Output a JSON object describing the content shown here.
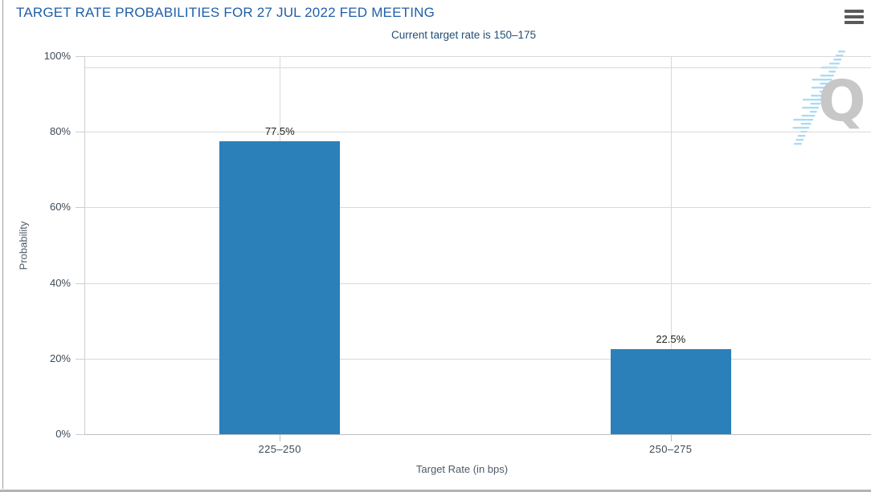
{
  "chart_data": {
    "type": "bar",
    "title": "TARGET RATE PROBABILITIES FOR 27 JUL 2022 FED MEETING",
    "subtitle": "Current target rate is 150–175",
    "categories": [
      "225–250",
      "250–275"
    ],
    "values": [
      77.5,
      22.5
    ],
    "data_labels": [
      "77.5%",
      "22.5%"
    ],
    "xlabel": "Target Rate (in bps)",
    "ylabel": "Probability",
    "ylim": [
      0,
      100
    ],
    "yticks": [
      0,
      20,
      40,
      60,
      80,
      100
    ],
    "ytick_labels": [
      "0%",
      "20%",
      "40%",
      "60%",
      "80%",
      "100%"
    ],
    "grid": true,
    "legend": false
  },
  "header": {
    "menu_icon": "hamburger"
  },
  "watermark": {
    "letter": "Q"
  },
  "colors": {
    "title": "#1f5fa8",
    "subtitle": "#234f77",
    "bar": "#2b80b9",
    "data_label": "#222222",
    "axis_text": "#4d5a66",
    "axis_text_dark": "#3e4a56",
    "grid_line": "#d9d9d9",
    "axis_line": "#c9ced3",
    "axis_line_x": "#b9bfc5",
    "menu_icon": "#5a5a5a",
    "watermark_q": "#c7c7c7",
    "watermark_dash": "#a9dcf4",
    "border_left": "#9e9e9e",
    "border_bottom": "#b3b3b3"
  }
}
